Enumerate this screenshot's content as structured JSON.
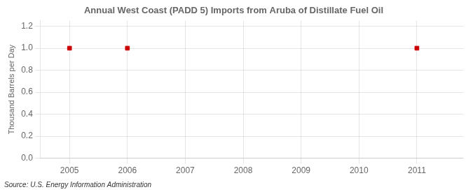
{
  "chart_data": {
    "type": "scatter",
    "title": "Annual West Coast (PADD 5) Imports from Aruba of Distillate Fuel Oil",
    "ylabel": "Thousand Barrels per Day",
    "annotations": [
      "Source: U.S. Energy Information Administration"
    ],
    "x": [
      2005,
      2006,
      2011
    ],
    "values": [
      1.0,
      1.0,
      1.0
    ],
    "color": "#cc0000",
    "marker": "square",
    "xlim": [
      2004.5,
      2011.8
    ],
    "ylim": [
      0.0,
      1.25
    ],
    "xticks": [
      2005,
      2006,
      2007,
      2008,
      2009,
      2010,
      2011
    ],
    "yticks": [
      {
        "value": 0.0,
        "label": "0.0"
      },
      0.2,
      0.4,
      0.6,
      0.8,
      {
        "value": 1.0,
        "label": "1.0"
      },
      1.2
    ],
    "grid": true
  }
}
